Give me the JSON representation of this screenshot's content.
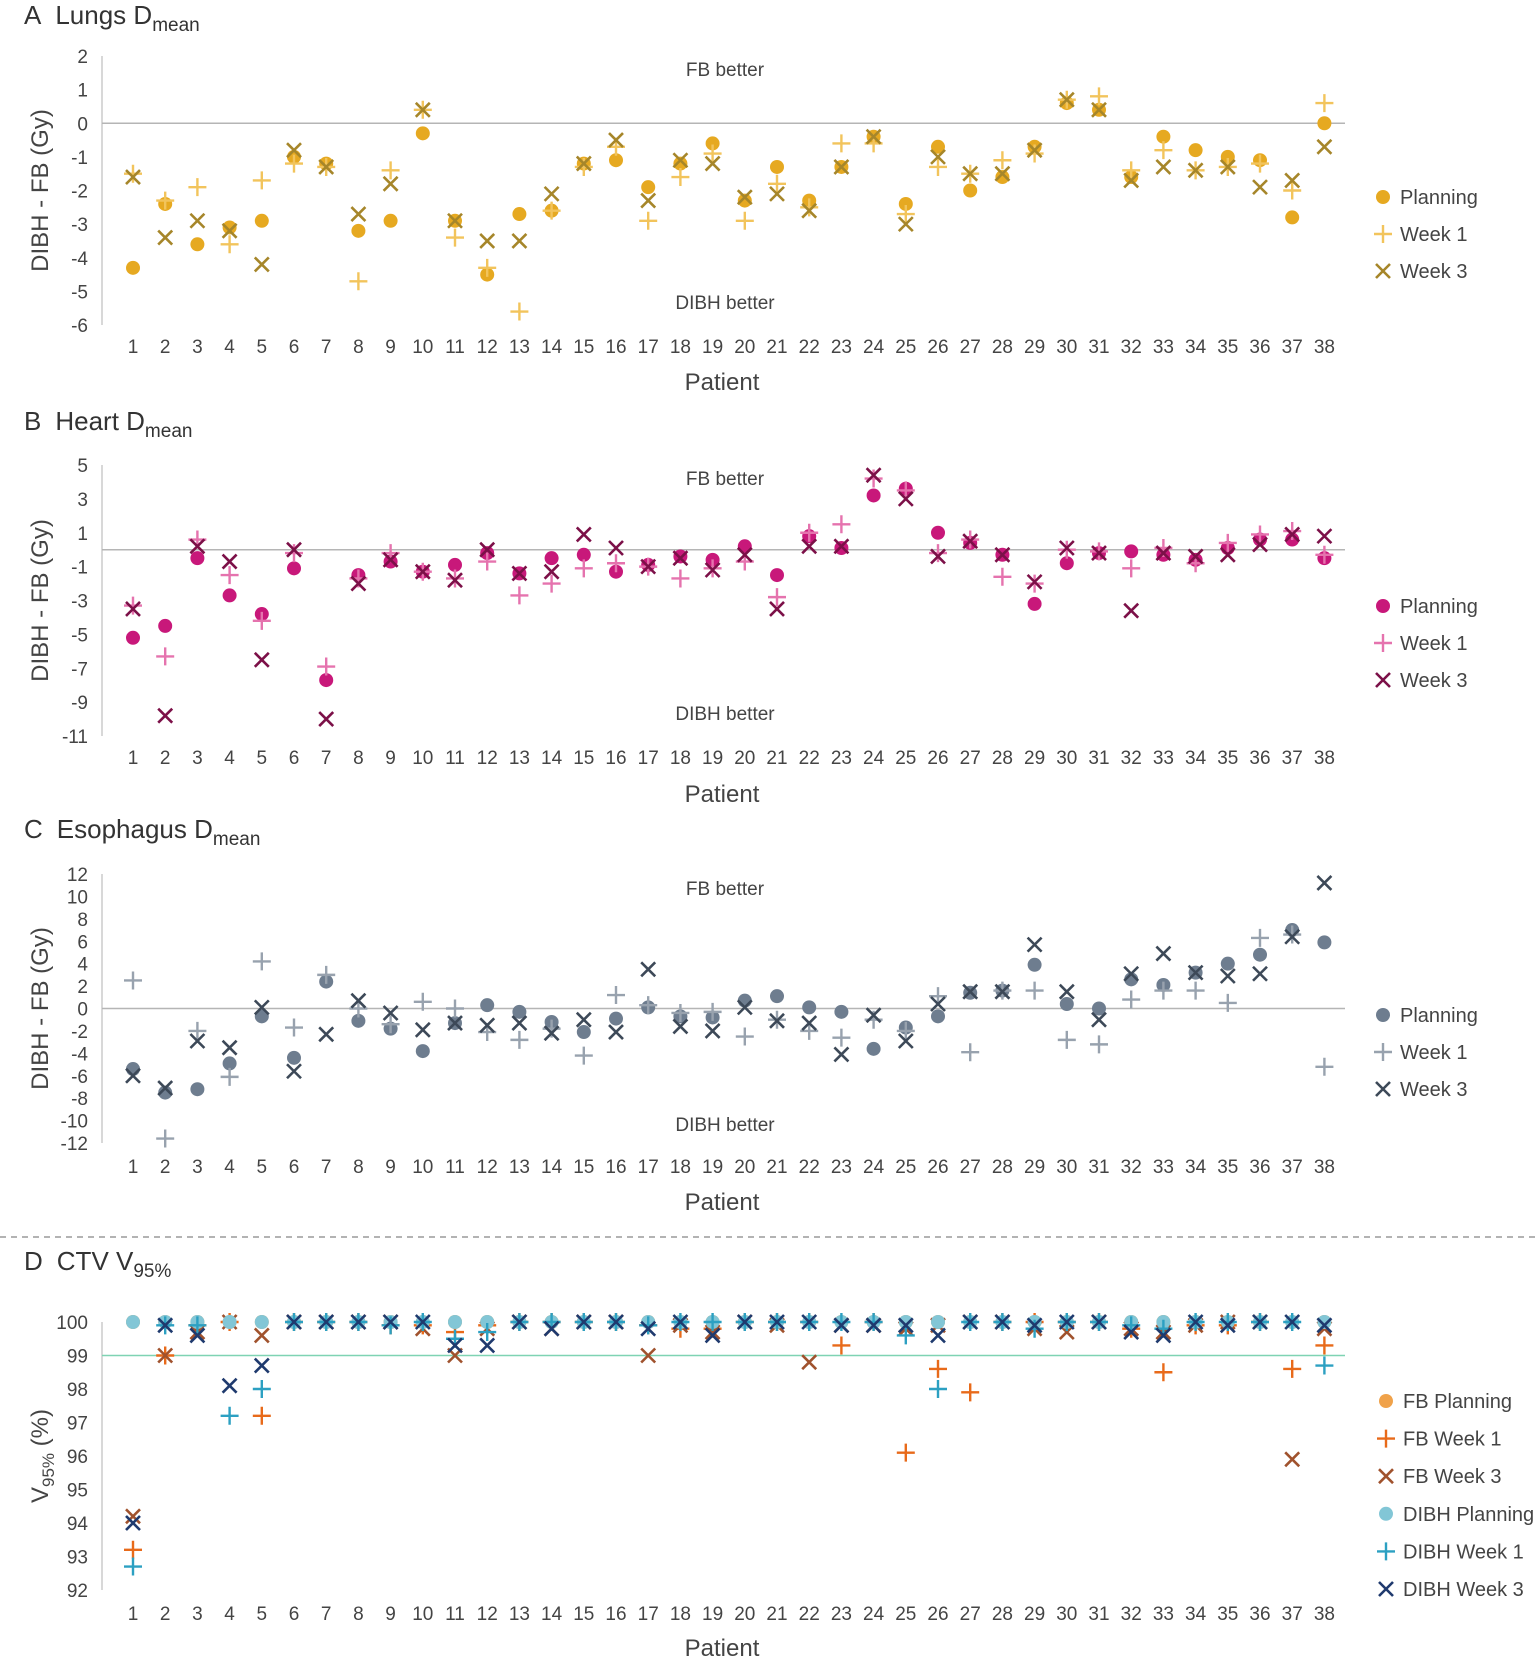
{
  "chart_data": [
    {
      "panel": "A",
      "title": "Lungs D",
      "title_sub": "mean",
      "type": "scatter",
      "ylabel": "DIBH - FB (Gy)",
      "xlabel": "Patient",
      "ylim": [
        -6,
        2
      ],
      "yticks": [
        2,
        1,
        0,
        -1,
        -2,
        -3,
        -4,
        -5,
        -6
      ],
      "reference_line": 0,
      "annotations": {
        "top": "FB better",
        "bottom": "DIBH better"
      },
      "colors": {
        "Planning": "#E6A921",
        "Week 1": "#F2C45C",
        "Week 3": "#A6862A"
      },
      "markers": {
        "Planning": "circle",
        "Week 1": "plus",
        "Week 3": "cross"
      },
      "categories": [
        "1",
        "2",
        "3",
        "4",
        "5",
        "6",
        "7",
        "8",
        "9",
        "10",
        "11",
        "12",
        "13",
        "14",
        "15",
        "16",
        "17",
        "18",
        "19",
        "20",
        "21",
        "22",
        "23",
        "24",
        "25",
        "26",
        "27",
        "28",
        "29",
        "30",
        "31",
        "32",
        "33",
        "34",
        "35",
        "36",
        "37",
        "38"
      ],
      "series": [
        {
          "name": "Planning",
          "values": [
            -4.3,
            -2.4,
            -3.6,
            -3.1,
            -2.9,
            -1.0,
            -1.2,
            -3.2,
            -2.9,
            -0.3,
            -2.9,
            -4.5,
            -2.7,
            -2.6,
            -1.2,
            -1.1,
            -1.9,
            -1.2,
            -0.6,
            -2.3,
            -1.3,
            -2.3,
            -1.3,
            -0.4,
            -2.4,
            -0.7,
            -2.0,
            -1.6,
            -0.7,
            0.6,
            0.4,
            -1.6,
            -0.4,
            -0.8,
            -1.0,
            -1.1,
            -2.8,
            0.0
          ]
        },
        {
          "name": "Week 1",
          "values": [
            -1.5,
            -2.3,
            -1.9,
            -3.6,
            -1.7,
            -1.2,
            -1.3,
            -4.7,
            -1.4,
            0.4,
            -3.4,
            -4.3,
            -5.6,
            -2.6,
            -1.3,
            -0.7,
            -2.9,
            -1.6,
            -0.9,
            -2.9,
            -1.8,
            -2.5,
            -0.6,
            -0.6,
            -2.7,
            -1.3,
            -1.5,
            -1.1,
            -0.9,
            0.7,
            0.8,
            -1.4,
            -0.8,
            -1.4,
            -1.3,
            -1.2,
            -2.0,
            0.6
          ]
        },
        {
          "name": "Week 3",
          "values": [
            -1.6,
            -3.4,
            -2.9,
            -3.2,
            -4.2,
            -0.8,
            -1.3,
            -2.7,
            -1.8,
            0.4,
            -2.9,
            -3.5,
            -3.5,
            -2.1,
            -1.2,
            -0.5,
            -2.3,
            -1.1,
            -1.2,
            -2.2,
            -2.1,
            -2.6,
            -1.3,
            -0.4,
            -3.0,
            -1.0,
            -1.5,
            -1.5,
            -0.8,
            0.7,
            0.4,
            -1.7,
            -1.3,
            -1.4,
            -1.3,
            -1.9,
            -1.7,
            -0.7
          ]
        }
      ]
    },
    {
      "panel": "B",
      "title": "Heart D",
      "title_sub": "mean",
      "type": "scatter",
      "ylabel": "DIBH - FB (Gy)",
      "xlabel": "Patient",
      "ylim": [
        -11,
        5
      ],
      "yticks": [
        5,
        3,
        1,
        -1,
        -3,
        -5,
        -7,
        -9,
        -11
      ],
      "reference_line": 0,
      "annotations": {
        "top": "FB better",
        "bottom": "DIBH better"
      },
      "colors": {
        "Planning": "#C8187A",
        "Week 1": "#E573AE",
        "Week 3": "#7C1048"
      },
      "markers": {
        "Planning": "circle",
        "Week 1": "plus",
        "Week 3": "cross"
      },
      "categories": [
        "1",
        "2",
        "3",
        "4",
        "5",
        "6",
        "7",
        "8",
        "9",
        "10",
        "11",
        "12",
        "13",
        "14",
        "15",
        "16",
        "17",
        "18",
        "19",
        "20",
        "21",
        "22",
        "23",
        "24",
        "25",
        "26",
        "27",
        "28",
        "29",
        "30",
        "31",
        "32",
        "33",
        "34",
        "35",
        "36",
        "37",
        "38"
      ],
      "series": [
        {
          "name": "Planning",
          "values": [
            -5.2,
            -4.5,
            -0.5,
            -2.7,
            -3.8,
            -1.1,
            -7.7,
            -1.5,
            -0.7,
            -1.3,
            -0.9,
            -0.2,
            -1.4,
            -0.5,
            -0.3,
            -1.3,
            -0.9,
            -0.4,
            -0.6,
            0.2,
            -1.5,
            0.8,
            0.1,
            3.2,
            3.6,
            1.0,
            0.4,
            -0.3,
            -3.2,
            -0.8,
            -0.2,
            -0.1,
            -0.3,
            -0.6,
            0.1,
            0.6,
            0.6,
            -0.5
          ]
        },
        {
          "name": "Week 1",
          "values": [
            -3.3,
            -6.3,
            0.6,
            -1.5,
            -4.2,
            -0.2,
            -6.9,
            -1.7,
            -0.2,
            -1.3,
            -1.7,
            -0.7,
            -2.7,
            -2.0,
            -1.1,
            -0.8,
            -1.0,
            -1.7,
            -1.1,
            -0.7,
            -2.8,
            1.0,
            1.5,
            4.2,
            3.5,
            -0.2,
            0.6,
            -1.6,
            -2.0,
            0.0,
            -0.1,
            -1.1,
            0.1,
            -0.8,
            0.4,
            0.9,
            1.1,
            -0.3
          ]
        },
        {
          "name": "Week 3",
          "values": [
            -3.5,
            -9.8,
            0.2,
            -0.7,
            -6.5,
            0.0,
            -10.0,
            -2.0,
            -0.6,
            -1.3,
            -1.8,
            0.0,
            -1.4,
            -1.3,
            0.9,
            0.1,
            -1.0,
            -0.5,
            -1.2,
            -0.3,
            -3.5,
            0.2,
            0.2,
            4.4,
            3.0,
            -0.4,
            0.5,
            -0.3,
            -1.9,
            0.1,
            -0.2,
            -3.6,
            -0.2,
            -0.4,
            -0.3,
            0.3,
            0.9,
            0.8
          ]
        }
      ]
    },
    {
      "panel": "C",
      "title": "Esophagus D",
      "title_sub": "mean",
      "type": "scatter",
      "ylabel": "DIBH - FB (Gy)",
      "xlabel": "Patient",
      "ylim": [
        -12,
        12
      ],
      "yticks": [
        12,
        10,
        8,
        6,
        4,
        2,
        0,
        -2,
        -4,
        -6,
        -8,
        -10,
        -12
      ],
      "reference_line": 0,
      "annotations": {
        "top": "FB better",
        "bottom": "DIBH better"
      },
      "colors": {
        "Planning": "#6E7D8F",
        "Week 1": "#98A2AE",
        "Week 3": "#3D4958"
      },
      "markers": {
        "Planning": "circle",
        "Week 1": "plus",
        "Week 3": "cross"
      },
      "categories": [
        "1",
        "2",
        "3",
        "4",
        "5",
        "6",
        "7",
        "8",
        "9",
        "10",
        "11",
        "12",
        "13",
        "14",
        "15",
        "16",
        "17",
        "18",
        "19",
        "20",
        "21",
        "22",
        "23",
        "24",
        "25",
        "26",
        "27",
        "28",
        "29",
        "30",
        "31",
        "32",
        "33",
        "34",
        "35",
        "36",
        "37",
        "38"
      ],
      "series": [
        {
          "name": "Planning",
          "values": [
            -5.4,
            -7.5,
            -7.2,
            -4.9,
            -0.7,
            -4.4,
            2.4,
            -1.1,
            -1.8,
            -3.8,
            -1.3,
            0.3,
            -0.3,
            -1.2,
            -2.1,
            -0.9,
            0.1,
            -0.7,
            -0.8,
            0.7,
            1.1,
            0.1,
            -0.3,
            -3.6,
            -1.7,
            -0.7,
            1.4,
            1.6,
            3.9,
            0.4,
            0.0,
            2.6,
            2.1,
            3.2,
            4.0,
            4.8,
            7.0,
            5.9
          ]
        },
        {
          "name": "Week 1",
          "values": [
            2.5,
            -11.6,
            -2.0,
            -6.1,
            4.2,
            -1.7,
            3.0,
            0.0,
            -1.4,
            0.6,
            0.0,
            -2.1,
            -2.8,
            -1.8,
            -4.2,
            1.2,
            0.3,
            -0.4,
            -0.3,
            -2.5,
            -1.0,
            -2.0,
            -2.6,
            -1.0,
            -2.0,
            1.1,
            -3.9,
            1.6,
            1.6,
            -2.8,
            -3.2,
            0.8,
            1.6,
            1.6,
            0.5,
            6.3,
            6.6,
            -5.2
          ]
        },
        {
          "name": "Week 3",
          "values": [
            -6.0,
            -7.1,
            -2.9,
            -3.5,
            0.1,
            -5.6,
            -2.3,
            0.7,
            -0.4,
            -1.9,
            -1.3,
            -1.5,
            -1.3,
            -2.2,
            -1.0,
            -2.1,
            3.5,
            -1.6,
            -2.0,
            0.1,
            -1.1,
            -1.3,
            -4.1,
            -0.6,
            -2.9,
            0.4,
            1.5,
            1.5,
            5.7,
            1.5,
            -1.0,
            3.1,
            4.9,
            3.2,
            2.9,
            3.1,
            6.4,
            11.2
          ]
        }
      ]
    },
    {
      "panel": "D",
      "title": "CTV V",
      "title_sub": "95%",
      "type": "scatter",
      "ylabel": "V",
      "ylabel_sub": "95%",
      "ylabel_suffix": " (%)",
      "xlabel": "Patient",
      "ylim": [
        92,
        100
      ],
      "yticks": [
        100,
        99,
        98,
        97,
        96,
        95,
        94,
        93,
        92
      ],
      "reference_line": 99,
      "colors": {
        "FB Planning": "#F0A24A",
        "FB Week 1": "#E86A1A",
        "FB Week 3": "#A0522D",
        "DIBH Planning": "#82C6D6",
        "DIBH Week 1": "#2CA0C2",
        "DIBH Week 3": "#1F3A6E",
        "reference": "#7FD3B3"
      },
      "markers": {
        "FB Planning": "circle",
        "FB Week 1": "plus",
        "FB Week 3": "cross",
        "DIBH Planning": "circle",
        "DIBH Week 1": "plus",
        "DIBH Week 3": "cross"
      },
      "categories": [
        "1",
        "2",
        "3",
        "4",
        "5",
        "6",
        "7",
        "8",
        "9",
        "10",
        "11",
        "12",
        "13",
        "14",
        "15",
        "16",
        "17",
        "18",
        "19",
        "20",
        "21",
        "22",
        "23",
        "24",
        "25",
        "26",
        "27",
        "28",
        "29",
        "30",
        "31",
        "32",
        "33",
        "34",
        "35",
        "36",
        "37",
        "38"
      ],
      "series": [
        {
          "name": "FB Planning",
          "values": [
            100,
            100,
            100,
            100,
            100,
            100,
            100,
            100,
            100,
            100,
            100,
            100,
            100,
            100,
            100,
            100,
            100,
            100,
            100,
            100,
            100,
            100,
            100,
            100,
            100,
            100,
            100,
            100,
            100,
            100,
            100,
            100,
            100,
            100,
            100,
            100,
            100,
            100
          ]
        },
        {
          "name": "FB Week 1",
          "values": [
            93.2,
            99.0,
            99.9,
            100,
            97.2,
            100,
            100,
            100,
            99.9,
            99.9,
            99.7,
            99.9,
            100,
            100,
            100,
            100,
            99.9,
            99.8,
            99.8,
            100,
            100,
            100,
            99.3,
            100,
            96.1,
            98.6,
            97.9,
            100,
            100,
            100,
            100,
            99.8,
            98.5,
            99.9,
            99.9,
            100,
            98.6,
            99.3
          ]
        },
        {
          "name": "FB Week 3",
          "values": [
            94.2,
            99.0,
            99.7,
            100,
            99.6,
            100,
            100,
            100,
            100,
            99.8,
            99.0,
            99.8,
            100,
            99.8,
            100,
            100,
            99.0,
            99.9,
            99.7,
            100,
            99.9,
            98.8,
            99.9,
            99.9,
            99.8,
            99.9,
            100,
            100,
            99.8,
            99.7,
            100,
            99.8,
            99.7,
            99.9,
            100,
            100,
            95.9,
            99.8
          ]
        },
        {
          "name": "DIBH Planning",
          "values": [
            100,
            100,
            100,
            100,
            100,
            100,
            100,
            100,
            100,
            100,
            100,
            100,
            100,
            100,
            100,
            100,
            100,
            100,
            100,
            100,
            100,
            100,
            100,
            100,
            100,
            100,
            100,
            100,
            100,
            100,
            100,
            100,
            100,
            100,
            100,
            100,
            100,
            100
          ]
        },
        {
          "name": "DIBH Week 1",
          "values": [
            92.7,
            99.9,
            99.9,
            97.2,
            98.0,
            100,
            100,
            100,
            99.9,
            100,
            99.5,
            99.7,
            100,
            100,
            100,
            100,
            99.9,
            100,
            100,
            100,
            100,
            100,
            100,
            100,
            99.6,
            98.0,
            100,
            100,
            99.8,
            100,
            100,
            99.9,
            99.8,
            100,
            100,
            100,
            100,
            98.7
          ]
        },
        {
          "name": "DIBH Week 3",
          "values": [
            94.0,
            99.9,
            99.6,
            98.1,
            98.7,
            100,
            100,
            100,
            100,
            100,
            99.3,
            99.3,
            100,
            99.8,
            100,
            100,
            99.8,
            100,
            99.6,
            100,
            100,
            100,
            99.9,
            99.9,
            99.9,
            99.6,
            100,
            100,
            99.9,
            100,
            100,
            99.7,
            99.6,
            100,
            99.9,
            100,
            100,
            99.9
          ]
        }
      ]
    }
  ]
}
